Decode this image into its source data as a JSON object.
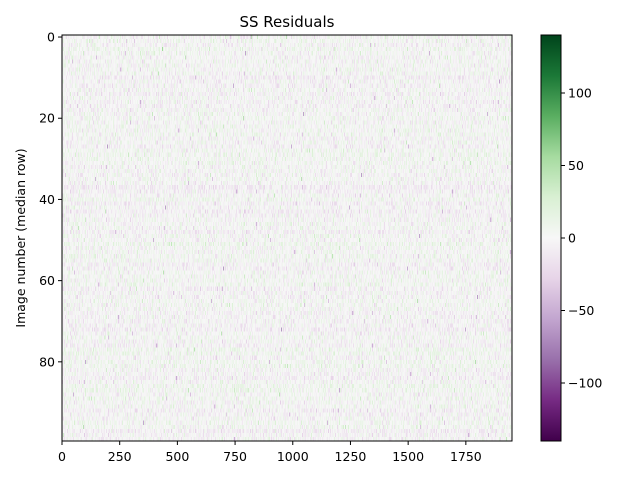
{
  "chart_data": {
    "type": "heatmap",
    "title": "SS Residuals",
    "xlabel": "",
    "ylabel": "Image number (median row)",
    "xlim": [
      0,
      1950
    ],
    "ylim": [
      99,
      0
    ],
    "n_rows": 100,
    "x_ticks": [
      0,
      250,
      500,
      750,
      1000,
      1250,
      1500,
      1750
    ],
    "x_tick_labels": [
      "0",
      "250",
      "500",
      "750",
      "1000",
      "1250",
      "1500",
      "1750"
    ],
    "y_ticks": [
      0,
      20,
      40,
      60,
      80
    ],
    "y_tick_labels": [
      "0",
      "20",
      "40",
      "60",
      "80"
    ],
    "colormap": "PRGn",
    "vmin": -140,
    "vmax": 140,
    "colorbar_ticks": [
      100,
      50,
      0,
      -50,
      -100
    ],
    "colorbar_tick_labels": [
      "100",
      "50",
      "0",
      "−50",
      "−100"
    ],
    "values_note": "",
    "typical_value_range": [
      -30,
      30
    ],
    "colors": {
      "low": "#40004b",
      "mid": "#f7f7f7",
      "high": "#00441b"
    }
  }
}
